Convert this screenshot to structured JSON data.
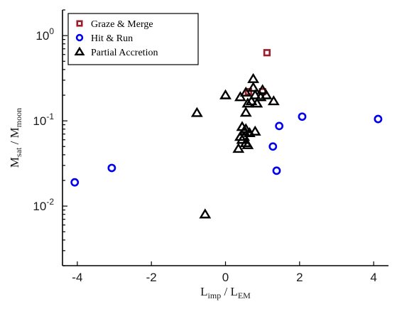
{
  "chart_data": {
    "type": "scatter",
    "title": "",
    "xlabel": "L_imp / L_EM",
    "ylabel": "M_sat / M_moon",
    "xlim": [
      -4.4,
      4.4
    ],
    "ylim": [
      0.002,
      2
    ],
    "yscale": "log",
    "xticks": [
      -4,
      -2,
      0,
      2,
      4
    ],
    "xtick_labels": [
      "-4",
      "-2",
      "0",
      "2",
      "4"
    ],
    "yticks": [
      1,
      0.1,
      0.01
    ],
    "grid": false,
    "legend_position": "top-left",
    "series": [
      {
        "name": "Graze & Merge",
        "marker": "square",
        "color": "#a01c2c",
        "points": [
          [
            1.12,
            0.63
          ],
          [
            0.62,
            0.22
          ],
          [
            1.0,
            0.22
          ]
        ]
      },
      {
        "name": "Hit & Run",
        "marker": "circle",
        "color": "#0000ee",
        "points": [
          [
            -4.07,
            0.019
          ],
          [
            -3.07,
            0.028
          ],
          [
            1.28,
            0.05
          ],
          [
            1.38,
            0.026
          ],
          [
            1.45,
            0.087
          ],
          [
            2.07,
            0.112
          ],
          [
            4.12,
            0.105
          ]
        ]
      },
      {
        "name": "Partial Accretion",
        "marker": "triangle",
        "color": "#000000",
        "points": [
          [
            -0.77,
            0.124
          ],
          [
            -0.55,
            0.008
          ],
          [
            0.0,
            0.2
          ],
          [
            0.4,
            0.19
          ],
          [
            0.55,
            0.215
          ],
          [
            0.6,
            0.16
          ],
          [
            0.55,
            0.125
          ],
          [
            0.75,
            0.31
          ],
          [
            0.75,
            0.245
          ],
          [
            0.8,
            0.2
          ],
          [
            0.85,
            0.16
          ],
          [
            0.95,
            0.19
          ],
          [
            1.0,
            0.23
          ],
          [
            1.1,
            0.2
          ],
          [
            1.3,
            0.17
          ],
          [
            0.7,
            0.17
          ],
          [
            0.45,
            0.085
          ],
          [
            0.5,
            0.075
          ],
          [
            0.55,
            0.08
          ],
          [
            0.65,
            0.072
          ],
          [
            0.4,
            0.065
          ],
          [
            0.5,
            0.065
          ],
          [
            0.45,
            0.06
          ],
          [
            0.55,
            0.055
          ],
          [
            0.6,
            0.052
          ],
          [
            0.8,
            0.075
          ],
          [
            0.35,
            0.047
          ]
        ]
      }
    ]
  }
}
